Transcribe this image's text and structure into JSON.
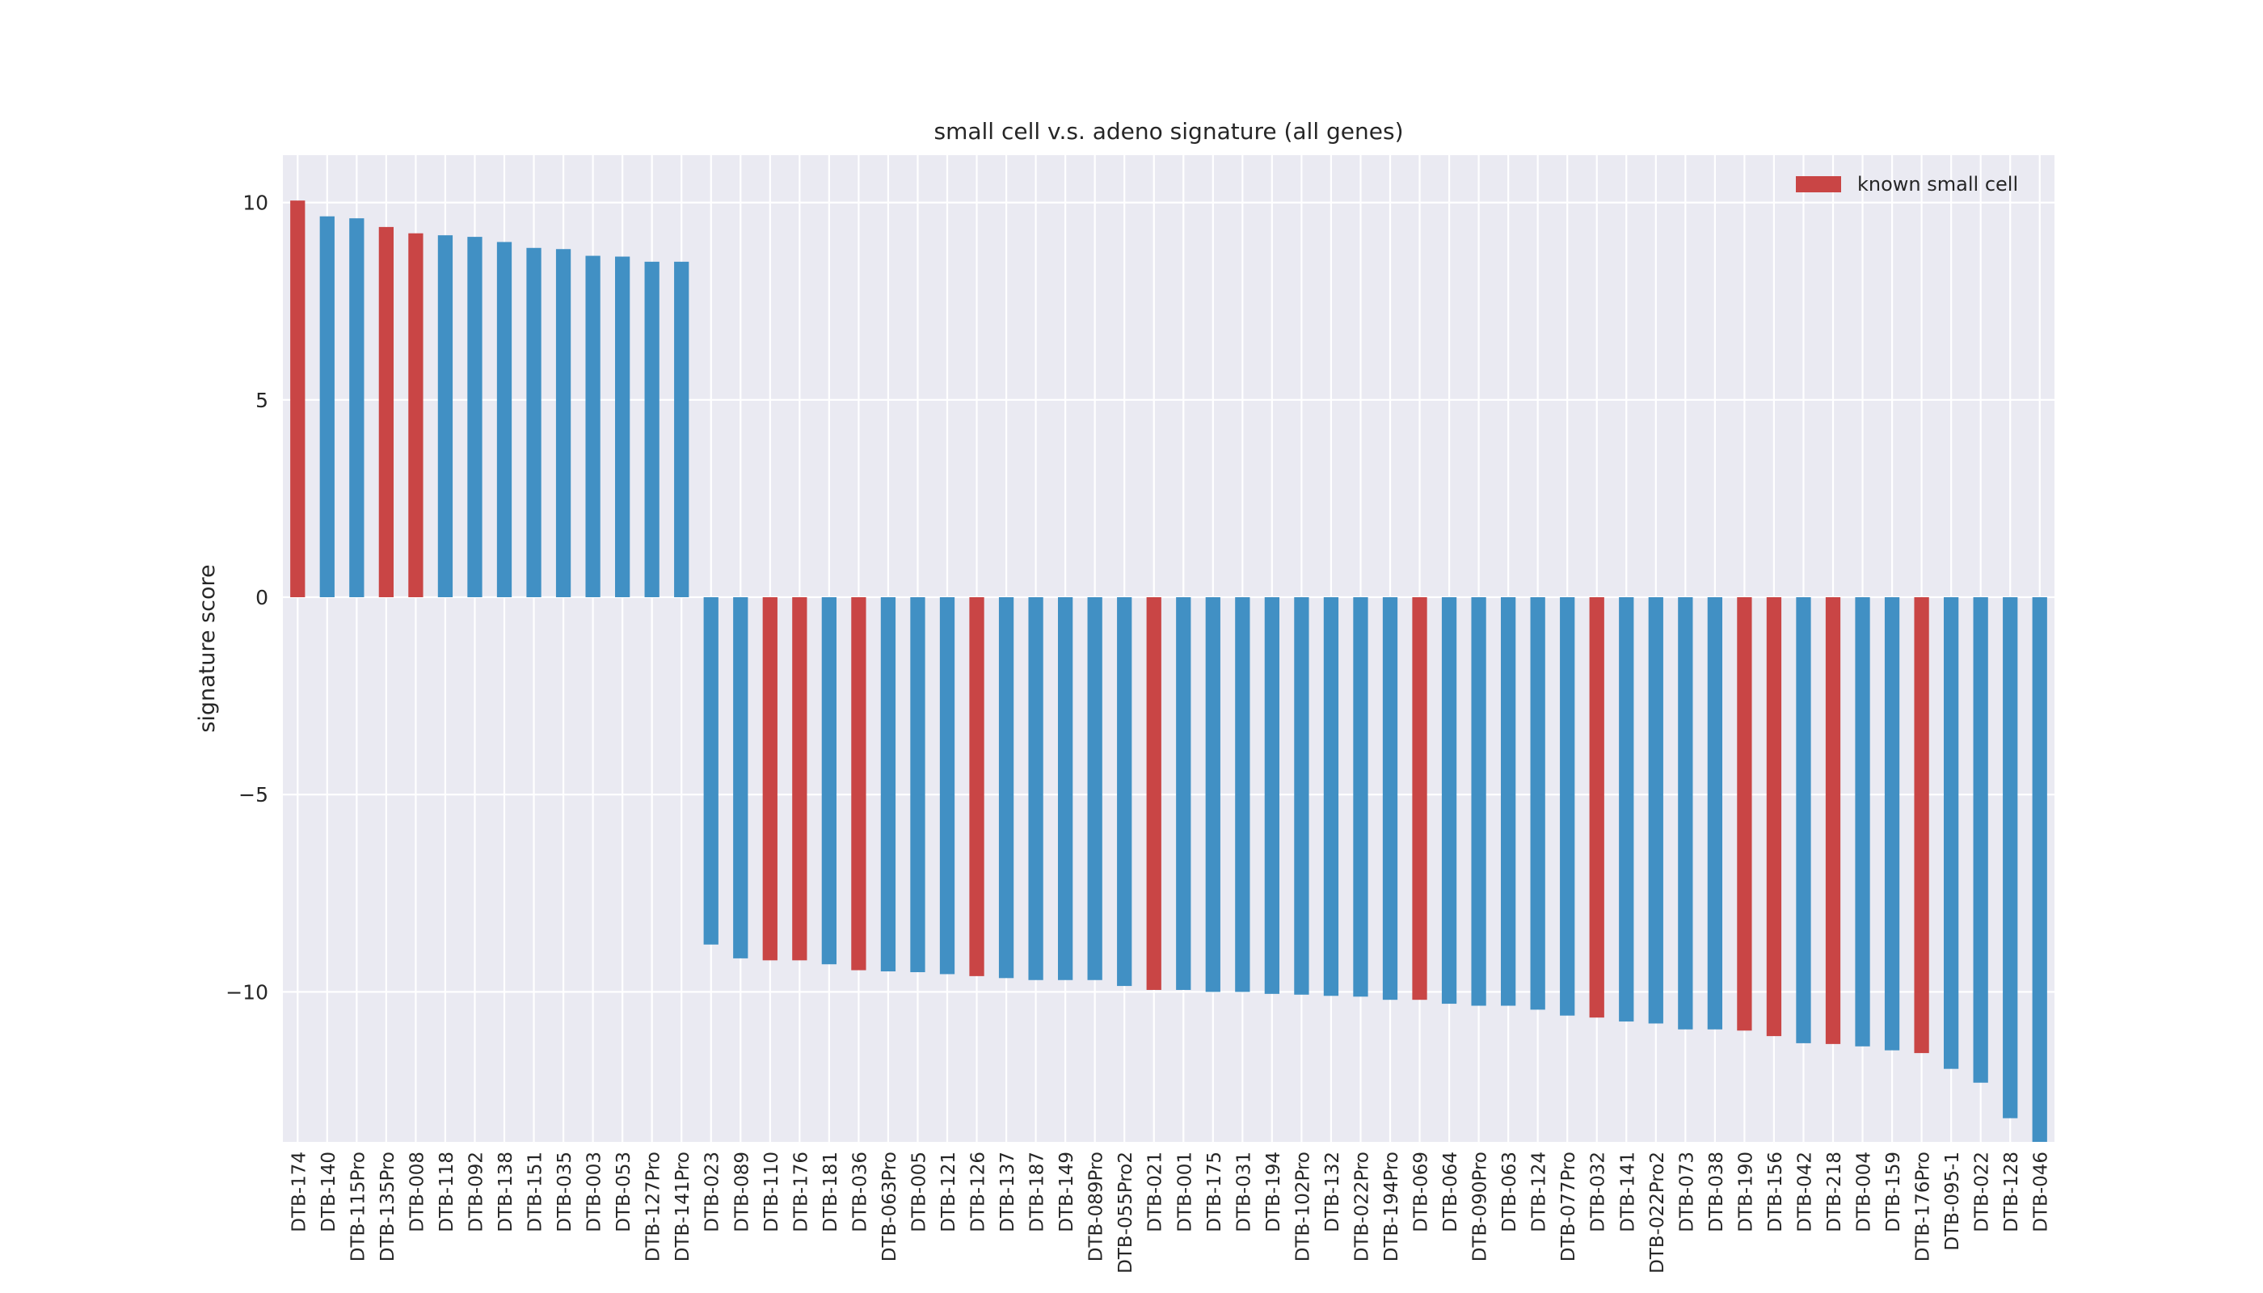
{
  "chart_data": {
    "type": "bar",
    "title": "small cell v.s. adeno signature (all genes)",
    "xlabel": "",
    "ylabel": "signature score",
    "ylim": [
      -13.8,
      11.2
    ],
    "yticks": [
      10,
      5,
      0,
      -5,
      -10
    ],
    "ytick_labels": [
      "10",
      "5",
      "0",
      "−5",
      "−10"
    ],
    "grid": true,
    "legend_position": "top-right",
    "colors": {
      "default": "#4190c4",
      "highlight": "#c94545",
      "background": "#eaeaf2",
      "grid": "#ffffff"
    },
    "legend": [
      {
        "label": "known small cell",
        "color": "#c94545"
      }
    ],
    "categories": [
      "DTB-174",
      "DTB-140",
      "DTB-115Pro",
      "DTB-135Pro",
      "DTB-008",
      "DTB-118",
      "DTB-092",
      "DTB-138",
      "DTB-151",
      "DTB-035",
      "DTB-003",
      "DTB-053",
      "DTB-127Pro",
      "DTB-141Pro",
      "DTB-023",
      "DTB-089",
      "DTB-110",
      "DTB-176",
      "DTB-181",
      "DTB-036",
      "DTB-063Pro",
      "DTB-005",
      "DTB-121",
      "DTB-126",
      "DTB-137",
      "DTB-187",
      "DTB-149",
      "DTB-089Pro",
      "DTB-055Pro2",
      "DTB-021",
      "DTB-001",
      "DTB-175",
      "DTB-031",
      "DTB-194",
      "DTB-102Pro",
      "DTB-132",
      "DTB-022Pro",
      "DTB-194Pro",
      "DTB-069",
      "DTB-064",
      "DTB-090Pro",
      "DTB-063",
      "DTB-124",
      "DTB-077Pro",
      "DTB-032",
      "DTB-141",
      "DTB-022Pro2",
      "DTB-073",
      "DTB-038",
      "DTB-190",
      "DTB-156",
      "DTB-042",
      "DTB-218",
      "DTB-004",
      "DTB-159",
      "DTB-176Pro",
      "DTB-095-1",
      "DTB-022",
      "DTB-128",
      "DTB-046"
    ],
    "values": [
      10.05,
      9.65,
      9.6,
      9.38,
      9.22,
      9.17,
      9.13,
      9.0,
      8.85,
      8.82,
      8.65,
      8.63,
      8.5,
      8.5,
      -8.8,
      -9.15,
      -9.2,
      -9.2,
      -9.3,
      -9.45,
      -9.48,
      -9.5,
      -9.55,
      -9.6,
      -9.65,
      -9.7,
      -9.7,
      -9.7,
      -9.85,
      -9.95,
      -9.95,
      -10.0,
      -10.0,
      -10.05,
      -10.07,
      -10.1,
      -10.12,
      -10.2,
      -10.2,
      -10.3,
      -10.35,
      -10.35,
      -10.45,
      -10.6,
      -10.65,
      -10.75,
      -10.8,
      -10.95,
      -10.95,
      -10.98,
      -11.12,
      -11.3,
      -11.32,
      -11.38,
      -11.48,
      -11.55,
      -11.95,
      -12.3,
      -13.2,
      -13.8
    ],
    "highlight": [
      true,
      false,
      false,
      true,
      true,
      false,
      false,
      false,
      false,
      false,
      false,
      false,
      false,
      false,
      false,
      false,
      true,
      true,
      false,
      true,
      false,
      false,
      false,
      true,
      false,
      false,
      false,
      false,
      false,
      true,
      false,
      false,
      false,
      false,
      false,
      false,
      false,
      false,
      true,
      false,
      false,
      false,
      false,
      false,
      true,
      false,
      false,
      false,
      false,
      true,
      true,
      false,
      true,
      false,
      false,
      true,
      false,
      false,
      false,
      false
    ]
  }
}
